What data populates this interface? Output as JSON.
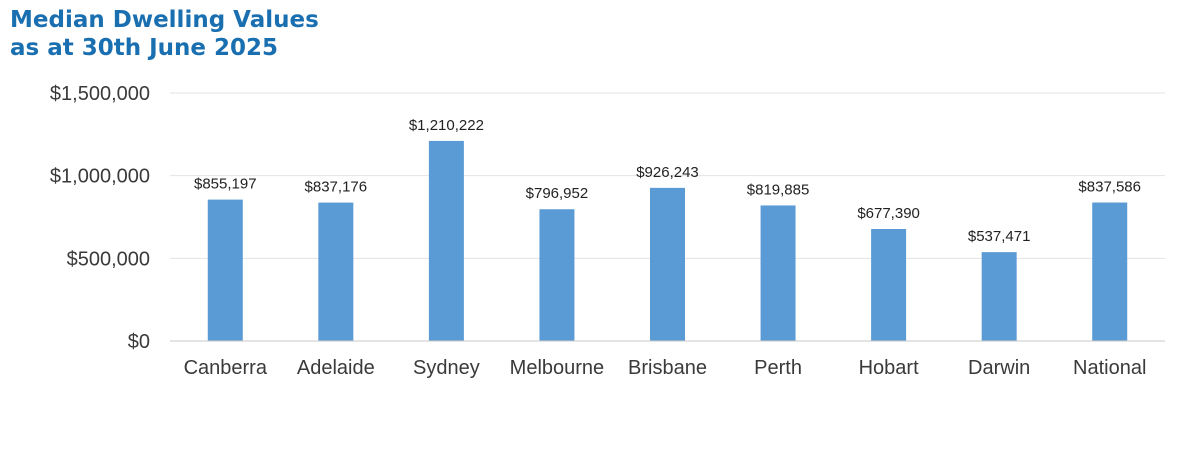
{
  "title_lines": [
    "Median Dwelling Values",
    "as at 30th June 2025"
  ],
  "colors": {
    "title": "#1a6fb0",
    "bar": "#5b9bd5",
    "grid": "#e3e3e3",
    "axis": "#c8c8c8"
  },
  "chart_data": {
    "type": "bar",
    "title": "Median Dwelling Values as at 30th June 2025",
    "categories": [
      "Canberra",
      "Adelaide",
      "Sydney",
      "Melbourne",
      "Brisbane",
      "Perth",
      "Hobart",
      "Darwin",
      "National"
    ],
    "values": [
      855197,
      837176,
      1210222,
      796952,
      926243,
      819885,
      677390,
      537471,
      837586
    ],
    "data_labels": [
      "$855,197",
      "$837,176",
      "$1,210,222",
      "$796,952",
      "$926,243",
      "$819,885",
      "$677,390",
      "$537,471",
      "$837,586"
    ],
    "y_ticks": [
      0,
      500000,
      1000000,
      1500000
    ],
    "y_tick_labels": [
      "$0",
      "$500,000",
      "$1,000,000",
      "$1,500,000"
    ],
    "ylim": [
      0,
      1500000
    ],
    "xlabel": "",
    "ylabel": "",
    "grid": true,
    "legend": "none"
  }
}
